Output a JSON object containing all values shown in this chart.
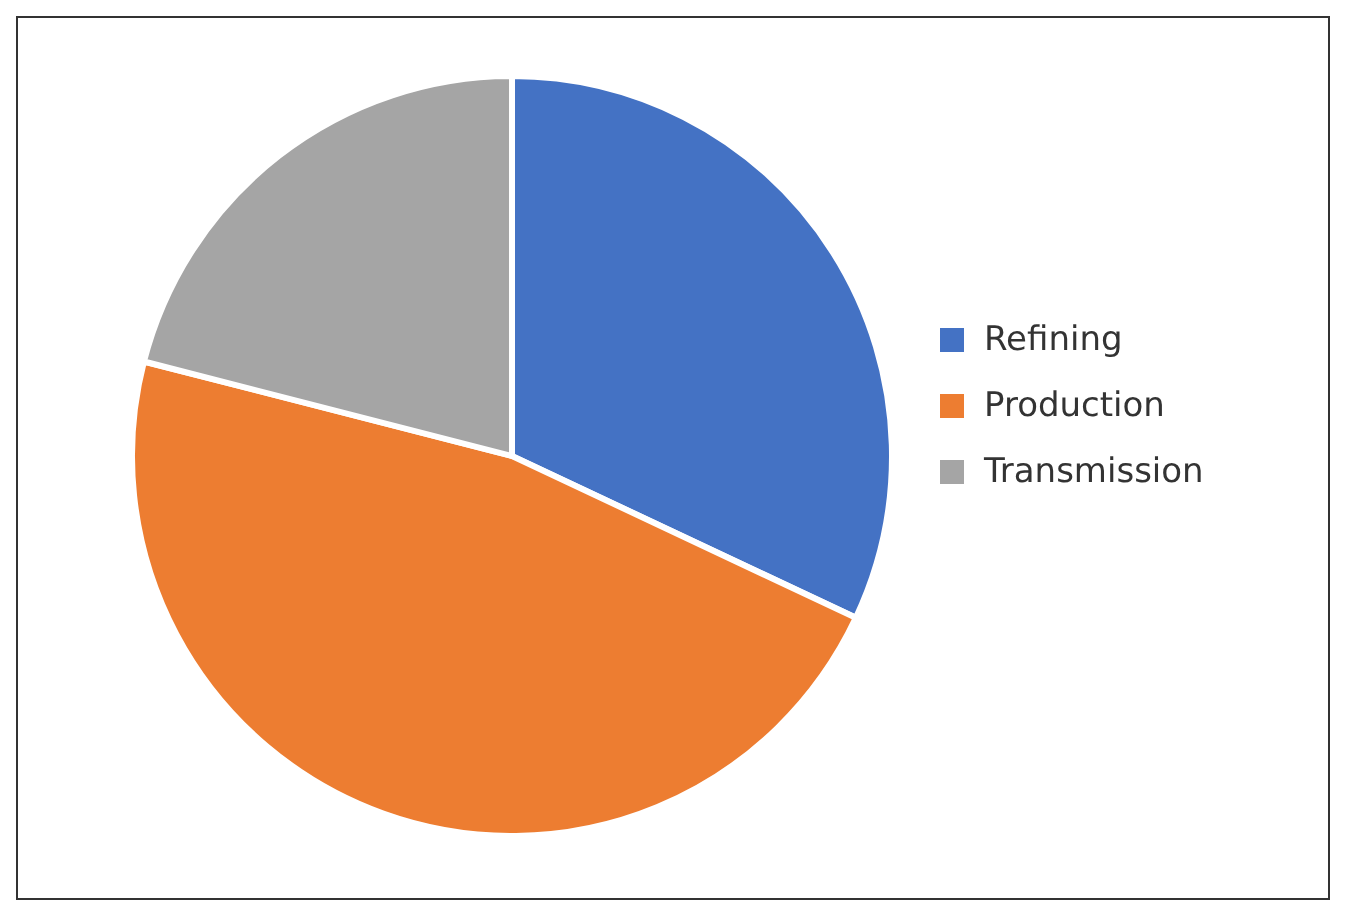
{
  "chart_data": {
    "type": "pie",
    "categories": [
      "Refining",
      "Production",
      "Transmission"
    ],
    "values": [
      32,
      47,
      21
    ],
    "colors": [
      "#4472c4",
      "#ed7d31",
      "#a5a5a5"
    ],
    "legend": "right"
  }
}
